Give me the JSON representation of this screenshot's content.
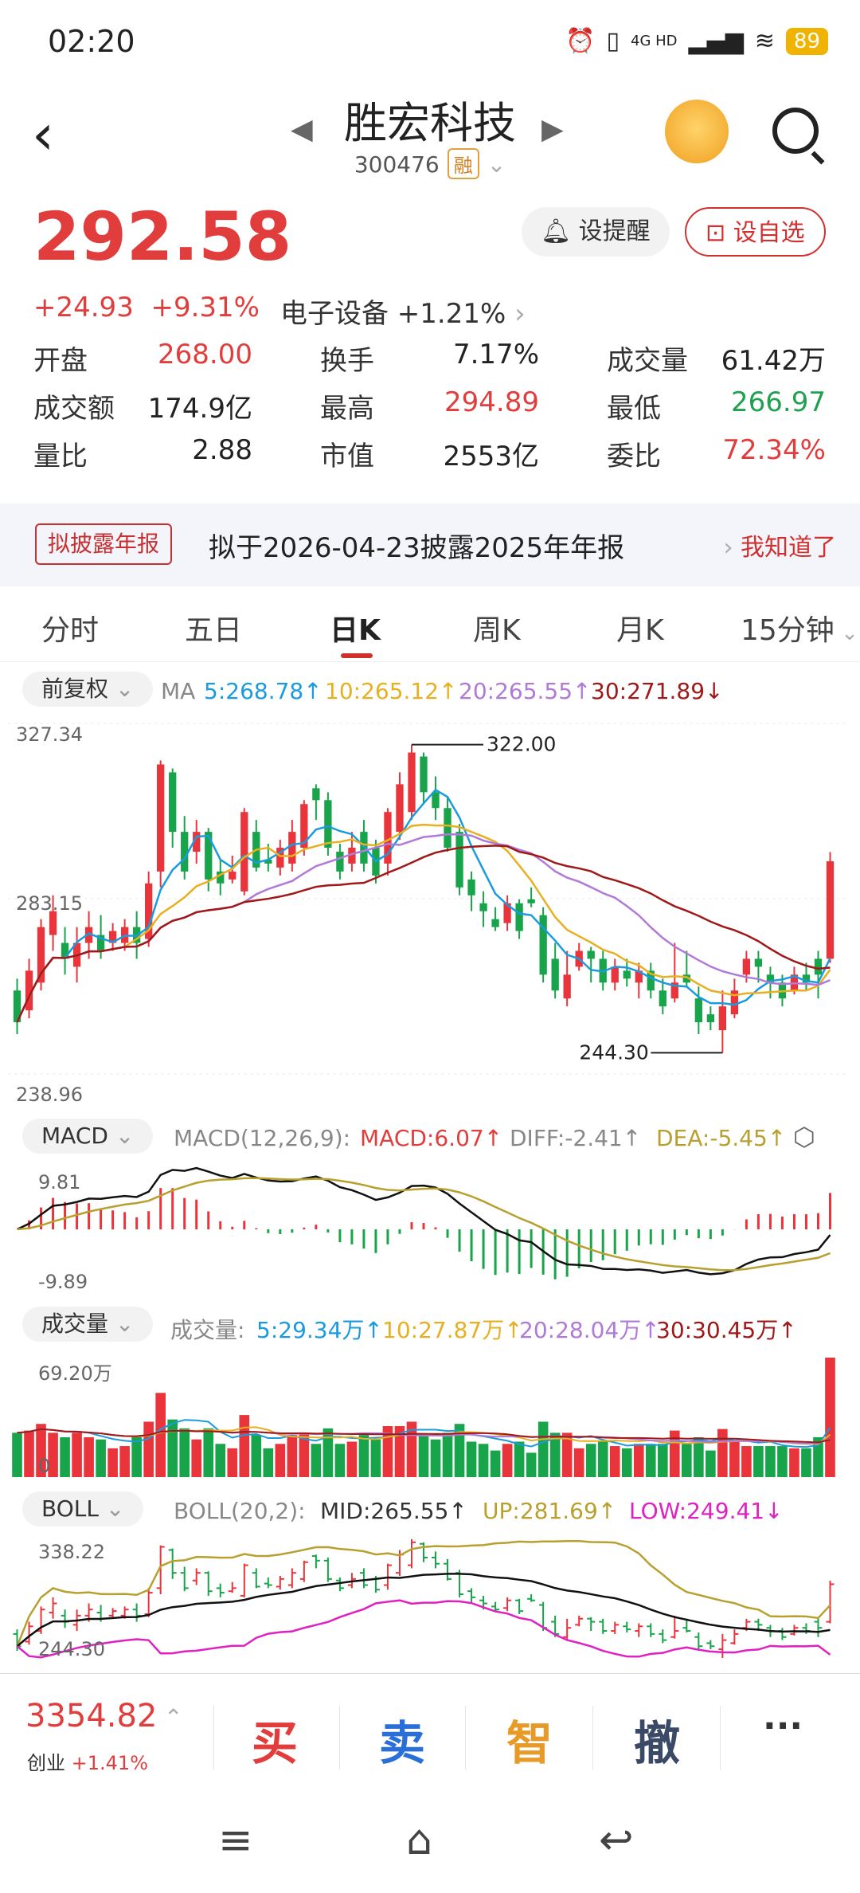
{
  "status": {
    "time": "02:20",
    "network": "4G HD",
    "battery": "89"
  },
  "header": {
    "title": "胜宏科技",
    "code": "300476",
    "badge": "融"
  },
  "price": {
    "last": "292.58",
    "change": "+24.93",
    "pct": "+9.31%",
    "sector": "电子设备 +1.21%"
  },
  "buttons": {
    "remind": "设提醒",
    "watch": "设自选"
  },
  "stats": [
    {
      "label": "开盘",
      "value": "268.00",
      "tone": "red"
    },
    {
      "label": "换手",
      "value": "7.17%",
      "tone": "plain"
    },
    {
      "label": "成交量",
      "value": "61.42万",
      "tone": "plain"
    },
    {
      "label": "成交额",
      "value": "174.9亿",
      "tone": "plain"
    },
    {
      "label": "最高",
      "value": "294.89",
      "tone": "red"
    },
    {
      "label": "最低",
      "value": "266.97",
      "tone": "green"
    },
    {
      "label": "量比",
      "value": "2.88",
      "tone": "plain"
    },
    {
      "label": "市值",
      "value": "2553亿",
      "tone": "plain"
    },
    {
      "label": "委比",
      "value": "72.34%",
      "tone": "red"
    }
  ],
  "notice": {
    "tag": "拟披露年报",
    "text": "拟于2026-04-23披露2025年年报",
    "action": "我知道了"
  },
  "tabs": [
    "分时",
    "五日",
    "日K",
    "周K",
    "月K",
    "15分钟"
  ],
  "ma_row": {
    "chip": "前复权",
    "label": "MA",
    "ma5": "5:268.78↑",
    "ma10": "10:265.12↑",
    "ma20": "20:265.55↑",
    "ma30": "30:271.89↓"
  },
  "kline_axis": {
    "top": "327.34",
    "mid": "283.15",
    "bottom": "238.96",
    "high_note": "322.00",
    "low_note": "244.30"
  },
  "macd_row": {
    "chip": "MACD",
    "params": "MACD(12,26,9):",
    "macd": "MACD:6.07↑",
    "diff": "DIFF:-2.41↑",
    "dea": "DEA:-5.45↑",
    "top": "9.81",
    "bottom": "-9.89"
  },
  "vol_row": {
    "chip": "成交量",
    "label": "成交量:",
    "v5": "5:29.34万↑",
    "v10": "10:27.87万↑",
    "v20": "20:28.04万↑",
    "v30": "30:30.45万↑",
    "top": "69.20万",
    "bottom": "0"
  },
  "boll_row": {
    "chip": "BOLL",
    "params": "BOLL(20,2):",
    "mid": "MID:265.55↑",
    "up": "UP:281.69↑",
    "low": "LOW:249.41↓",
    "top": "338.22",
    "bottom": "244.30"
  },
  "colors": {
    "up": "#e8343a",
    "down": "#18a44a",
    "ma5": "#1a9be0",
    "ma10": "#e8b020",
    "ma20": "#b07ad8",
    "ma30": "#a01818"
  },
  "bottom": {
    "index": "3354.82",
    "index_name": "创业",
    "index_pct": "+1.41%",
    "buy": "买",
    "sell": "卖",
    "smart": "智",
    "cancel": "撤",
    "more": "···"
  },
  "chart_data": {
    "type": "candlestick",
    "candles": [
      {
        "o": 260,
        "c": 252,
        "h": 263,
        "l": 249
      },
      {
        "o": 255,
        "c": 265,
        "h": 268,
        "l": 253
      },
      {
        "o": 262,
        "c": 276,
        "h": 278,
        "l": 260
      },
      {
        "o": 274,
        "c": 280,
        "h": 284,
        "l": 270
      },
      {
        "o": 272,
        "c": 268,
        "h": 276,
        "l": 264
      },
      {
        "o": 266,
        "c": 272,
        "h": 276,
        "l": 262
      },
      {
        "o": 272,
        "c": 276,
        "h": 280,
        "l": 268
      },
      {
        "o": 274,
        "c": 270,
        "h": 279,
        "l": 268
      },
      {
        "o": 272,
        "c": 275,
        "h": 277,
        "l": 270
      },
      {
        "o": 272,
        "c": 276,
        "h": 278,
        "l": 270
      },
      {
        "o": 276,
        "c": 272,
        "h": 280,
        "l": 268
      },
      {
        "o": 273,
        "c": 287,
        "h": 290,
        "l": 271
      },
      {
        "o": 290,
        "c": 317,
        "h": 318,
        "l": 286
      },
      {
        "o": 315,
        "c": 300,
        "h": 316,
        "l": 296
      },
      {
        "o": 300,
        "c": 290,
        "h": 304,
        "l": 288
      },
      {
        "o": 295,
        "c": 300,
        "h": 303,
        "l": 292
      },
      {
        "o": 300,
        "c": 288,
        "h": 301,
        "l": 285
      },
      {
        "o": 290,
        "c": 287,
        "h": 293,
        "l": 284
      },
      {
        "o": 288,
        "c": 290,
        "h": 294,
        "l": 287
      },
      {
        "o": 285,
        "c": 305,
        "h": 306,
        "l": 284
      },
      {
        "o": 300,
        "c": 291,
        "h": 303,
        "l": 290
      },
      {
        "o": 293,
        "c": 292,
        "h": 297,
        "l": 290
      },
      {
        "o": 291,
        "c": 296,
        "h": 298,
        "l": 289
      },
      {
        "o": 292,
        "c": 300,
        "h": 303,
        "l": 290
      },
      {
        "o": 296,
        "c": 307,
        "h": 308,
        "l": 294
      },
      {
        "o": 311,
        "c": 308,
        "h": 312,
        "l": 303
      },
      {
        "o": 308,
        "c": 296,
        "h": 310,
        "l": 294
      },
      {
        "o": 295,
        "c": 290,
        "h": 297,
        "l": 288
      },
      {
        "o": 292,
        "c": 296,
        "h": 300,
        "l": 290
      },
      {
        "o": 300,
        "c": 292,
        "h": 303,
        "l": 290
      },
      {
        "o": 296,
        "c": 289,
        "h": 298,
        "l": 287
      },
      {
        "o": 292,
        "c": 305,
        "h": 306,
        "l": 289
      },
      {
        "o": 300,
        "c": 312,
        "h": 315,
        "l": 298
      },
      {
        "o": 305,
        "c": 320,
        "h": 322,
        "l": 303
      },
      {
        "o": 319,
        "c": 310,
        "h": 320,
        "l": 307
      },
      {
        "o": 310,
        "c": 306,
        "h": 314,
        "l": 303
      },
      {
        "o": 306,
        "c": 296,
        "h": 309,
        "l": 295
      },
      {
        "o": 300,
        "c": 286,
        "h": 302,
        "l": 284
      },
      {
        "o": 288,
        "c": 284,
        "h": 290,
        "l": 280
      },
      {
        "o": 282,
        "c": 280,
        "h": 285,
        "l": 276
      },
      {
        "o": 278,
        "c": 276,
        "h": 281,
        "l": 275
      },
      {
        "o": 277,
        "c": 282,
        "h": 284,
        "l": 275
      },
      {
        "o": 282,
        "c": 275,
        "h": 283,
        "l": 273
      },
      {
        "o": 283,
        "c": 282,
        "h": 286,
        "l": 281
      },
      {
        "o": 279,
        "c": 264,
        "h": 281,
        "l": 262
      },
      {
        "o": 268,
        "c": 260,
        "h": 272,
        "l": 258
      },
      {
        "o": 258,
        "c": 264,
        "h": 270,
        "l": 256
      },
      {
        "o": 266,
        "c": 270,
        "h": 272,
        "l": 265
      },
      {
        "o": 270,
        "c": 268,
        "h": 271,
        "l": 262
      },
      {
        "o": 268,
        "c": 262,
        "h": 270,
        "l": 260
      },
      {
        "o": 262,
        "c": 266,
        "h": 268,
        "l": 260
      },
      {
        "o": 265,
        "c": 263,
        "h": 268,
        "l": 261
      },
      {
        "o": 262,
        "c": 265,
        "h": 267,
        "l": 258
      },
      {
        "o": 265,
        "c": 260,
        "h": 267,
        "l": 258
      },
      {
        "o": 260,
        "c": 256,
        "h": 263,
        "l": 254
      },
      {
        "o": 258,
        "c": 262,
        "h": 272,
        "l": 257
      },
      {
        "o": 264,
        "c": 262,
        "h": 270,
        "l": 261
      },
      {
        "o": 258,
        "c": 252,
        "h": 261,
        "l": 249
      },
      {
        "o": 254,
        "c": 252,
        "h": 256,
        "l": 250
      },
      {
        "o": 250,
        "c": 256,
        "h": 260,
        "l": 244.3
      },
      {
        "o": 254,
        "c": 260,
        "h": 263,
        "l": 253
      },
      {
        "o": 264,
        "c": 268,
        "h": 270,
        "l": 262
      },
      {
        "o": 268,
        "c": 266,
        "h": 270,
        "l": 262
      },
      {
        "o": 264,
        "c": 262,
        "h": 266,
        "l": 258
      },
      {
        "o": 262,
        "c": 258,
        "h": 264,
        "l": 256
      },
      {
        "o": 260,
        "c": 264,
        "h": 266,
        "l": 259
      },
      {
        "o": 264,
        "c": 262,
        "h": 267,
        "l": 260
      },
      {
        "o": 268,
        "c": 264,
        "h": 270,
        "l": 258
      },
      {
        "o": 268,
        "c": 292.58,
        "h": 294.89,
        "l": 266.97
      }
    ],
    "ylim": [
      238.96,
      327.34
    ]
  }
}
